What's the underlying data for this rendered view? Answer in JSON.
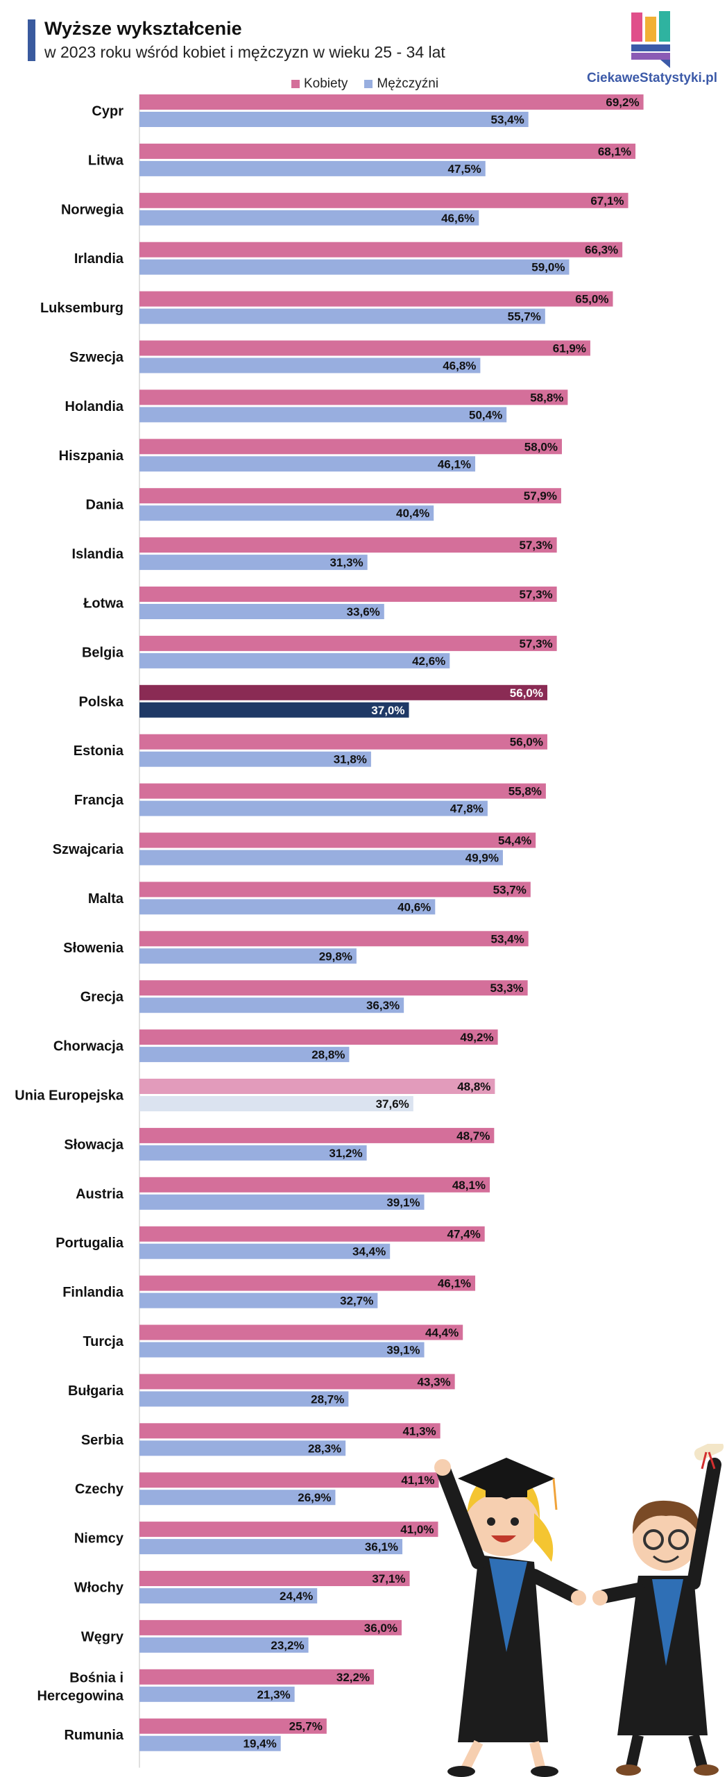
{
  "header": {
    "title": "Wyższe wykształcenie",
    "subtitle": "w 2023 roku wśród kobiet i mężczyzn w wieku 25 - 34 lat",
    "logo_text": "CiekaweStatystyki.pl"
  },
  "colors": {
    "women": "#d46f9a",
    "men": "#98aedf",
    "poland_women": "#8a2b54",
    "poland_men": "#1f3966",
    "eu_women": "#e29bbb",
    "eu_men": "#dbe3f0",
    "accent": "#3a5a9e",
    "logo_blue": "#3c5aa8"
  },
  "chart_data": {
    "type": "bar",
    "orientation": "horizontal",
    "title": "Wyższe wykształcenie",
    "subtitle": "w 2023 roku wśród kobiet i mężczyzn w wieku 25 - 34 lat",
    "legend_position": "top",
    "grid": false,
    "xlim": [
      0,
      100
    ],
    "categories": [
      "Cypr",
      "Litwa",
      "Norwegia",
      "Irlandia",
      "Luksemburg",
      "Szwecja",
      "Holandia",
      "Hiszpania",
      "Dania",
      "Islandia",
      "Łotwa",
      "Belgia",
      "Polska",
      "Estonia",
      "Francja",
      "Szwajcaria",
      "Malta",
      "Słowenia",
      "Grecja",
      "Chorwacja",
      "Unia Europejska",
      "Słowacja",
      "Austria",
      "Portugalia",
      "Finlandia",
      "Turcja",
      "Bułgaria",
      "Serbia",
      "Czechy",
      "Niemcy",
      "Włochy",
      "Węgry",
      "Bośnia i Hercegowina",
      "Rumunia"
    ],
    "series": [
      {
        "name": "Kobiety",
        "values": [
          69.2,
          68.1,
          67.1,
          66.3,
          65.0,
          61.9,
          58.8,
          58.0,
          57.9,
          57.3,
          57.3,
          57.3,
          56.0,
          56.0,
          55.8,
          54.4,
          53.7,
          53.4,
          53.3,
          49.2,
          48.8,
          48.7,
          48.1,
          47.4,
          46.1,
          44.4,
          43.3,
          41.3,
          41.1,
          41.0,
          37.1,
          36.0,
          32.2,
          25.7
        ]
      },
      {
        "name": "Mężczyźni",
        "values": [
          53.4,
          47.5,
          46.6,
          59.0,
          55.7,
          46.8,
          50.4,
          46.1,
          40.4,
          31.3,
          33.6,
          42.6,
          37.0,
          31.8,
          47.8,
          49.9,
          40.6,
          29.8,
          36.3,
          28.8,
          37.6,
          31.2,
          39.1,
          34.4,
          32.7,
          39.1,
          28.7,
          28.3,
          26.9,
          36.1,
          24.4,
          23.2,
          21.3,
          19.4
        ]
      }
    ],
    "highlighted": {
      "Polska": "dark",
      "Unia Europejska": "light"
    }
  }
}
